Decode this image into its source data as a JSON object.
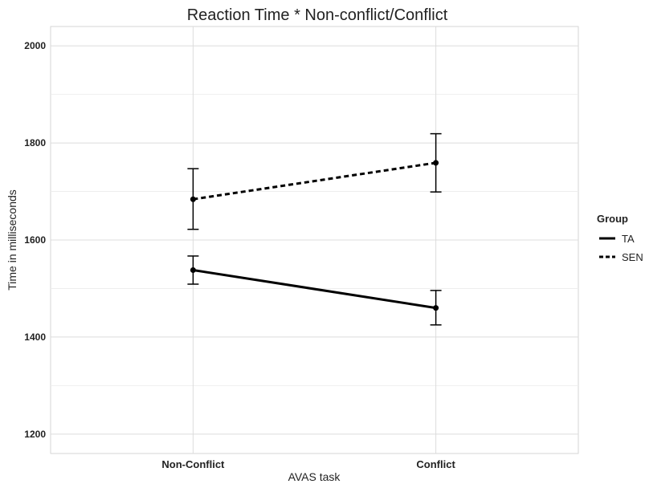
{
  "chart_data": {
    "type": "line",
    "title": "Reaction Time * Non-conflict/Conflict",
    "xlabel": "AVAS task",
    "ylabel": "Time in milliseconds",
    "categories": [
      "Non-Conflict",
      "Conflict"
    ],
    "ylim": [
      1160,
      2040
    ],
    "yticks": [
      1200,
      1400,
      1600,
      1800,
      2000
    ],
    "ytick_labels": [
      "1200",
      "1400",
      "1600",
      "1800",
      "2000"
    ],
    "grid": true,
    "legend": {
      "title": "Group",
      "position": "right"
    },
    "series": [
      {
        "name": "TA",
        "line_style": "solid",
        "color": "#000000",
        "values": [
          1538,
          1460
        ],
        "error_low": [
          1509,
          1425
        ],
        "error_high": [
          1567,
          1496
        ]
      },
      {
        "name": "SEN",
        "line_style": "dashed",
        "color": "#000000",
        "values": [
          1684,
          1759
        ],
        "error_low": [
          1622,
          1699
        ],
        "error_high": [
          1747,
          1819
        ]
      }
    ]
  }
}
